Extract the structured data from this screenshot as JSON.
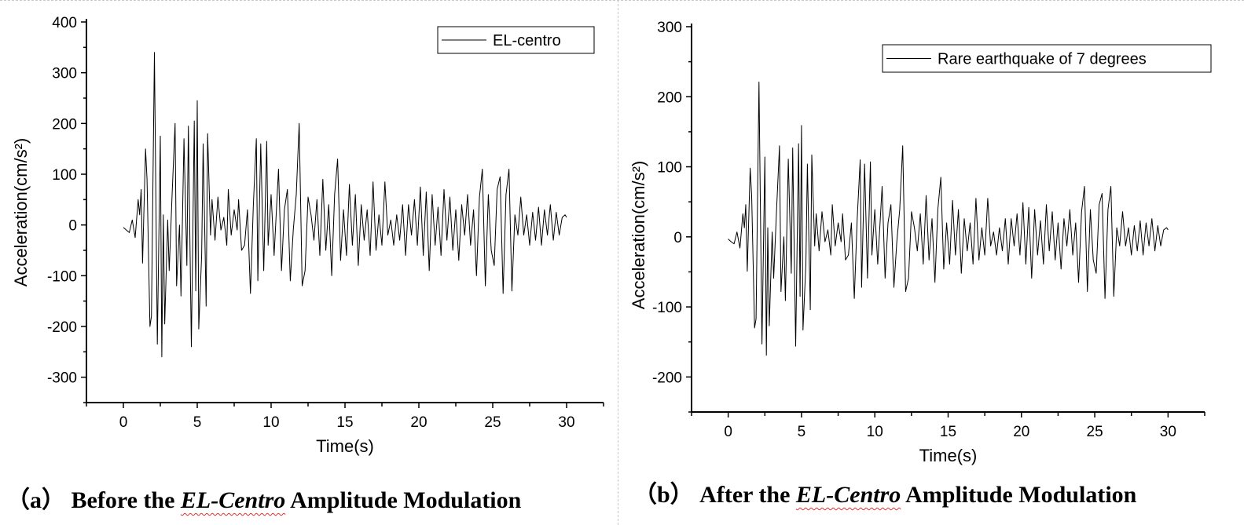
{
  "chart_data": [
    {
      "type": "line",
      "xlabel": "Time(s)",
      "ylabel": "Acceleration(cm/s²)",
      "xlim": [
        -2.5,
        32.5
      ],
      "ylim": [
        -350,
        400
      ],
      "xticks": [
        0,
        5,
        10,
        15,
        20,
        25,
        30
      ],
      "yticks": [
        -300,
        -200,
        -100,
        0,
        100,
        200,
        300,
        400
      ],
      "grid": false,
      "legend_placement": "top-right",
      "line_color": "#000000",
      "series": [
        {
          "name": "EL-centro",
          "x": [
            0,
            0.2,
            0.4,
            0.6,
            0.8,
            1.0,
            1.1,
            1.2,
            1.3,
            1.5,
            1.6,
            1.8,
            1.9,
            2.1,
            2.3,
            2.5,
            2.6,
            2.7,
            2.8,
            3.0,
            3.1,
            3.3,
            3.5,
            3.6,
            3.8,
            3.9,
            4.1,
            4.3,
            4.4,
            4.6,
            4.8,
            4.9,
            5.0,
            5.1,
            5.3,
            5.4,
            5.6,
            5.7,
            5.9,
            6.0,
            6.2,
            6.4,
            6.6,
            6.8,
            7.0,
            7.1,
            7.3,
            7.5,
            7.7,
            7.8,
            8.0,
            8.2,
            8.4,
            8.6,
            8.8,
            9.0,
            9.1,
            9.3,
            9.5,
            9.7,
            9.8,
            10.0,
            10.2,
            10.5,
            10.7,
            10.9,
            11.1,
            11.3,
            11.5,
            11.7,
            11.9,
            12.1,
            12.3,
            12.5,
            12.7,
            12.9,
            13.1,
            13.3,
            13.5,
            13.7,
            13.9,
            14.1,
            14.3,
            14.5,
            14.7,
            14.9,
            15.1,
            15.3,
            15.5,
            15.7,
            15.9,
            16.1,
            16.3,
            16.5,
            16.7,
            16.9,
            17.1,
            17.3,
            17.5,
            17.7,
            17.9,
            18.1,
            18.3,
            18.5,
            18.7,
            18.9,
            19.1,
            19.3,
            19.5,
            19.7,
            19.9,
            20.1,
            20.3,
            20.5,
            20.7,
            20.9,
            21.1,
            21.3,
            21.5,
            21.7,
            21.9,
            22.1,
            22.3,
            22.5,
            22.7,
            22.9,
            23.1,
            23.3,
            23.5,
            23.7,
            23.9,
            24.1,
            24.3,
            24.5,
            24.7,
            24.9,
            25.1,
            25.3,
            25.5,
            25.7,
            25.9,
            26.1,
            26.3,
            26.5,
            26.7,
            26.9,
            27.1,
            27.3,
            27.5,
            27.7,
            27.9,
            28.1,
            28.3,
            28.5,
            28.7,
            28.9,
            29.1,
            29.3,
            29.5,
            29.7,
            29.9,
            30.0
          ],
          "y": [
            -5,
            -10,
            -15,
            10,
            -25,
            50,
            20,
            70,
            -75,
            150,
            90,
            -200,
            -180,
            340,
            -235,
            175,
            -260,
            20,
            -195,
            10,
            -90,
            60,
            200,
            -120,
            0,
            -140,
            170,
            -80,
            195,
            -240,
            205,
            -130,
            245,
            -205,
            -60,
            160,
            -160,
            180,
            -20,
            50,
            -30,
            55,
            -10,
            15,
            -40,
            70,
            -20,
            30,
            -10,
            50,
            -50,
            -40,
            30,
            -135,
            40,
            170,
            -110,
            160,
            -90,
            165,
            -40,
            60,
            -60,
            110,
            -90,
            30,
            70,
            -110,
            -10,
            60,
            200,
            -120,
            -90,
            55,
            20,
            -30,
            50,
            -60,
            90,
            -50,
            40,
            -100,
            60,
            130,
            -70,
            30,
            -60,
            80,
            -40,
            60,
            -80,
            40,
            -30,
            30,
            -60,
            85,
            -50,
            20,
            -40,
            85,
            -20,
            10,
            -40,
            20,
            -30,
            40,
            -60,
            40,
            -20,
            50,
            -40,
            75,
            -60,
            65,
            -90,
            60,
            -40,
            35,
            -60,
            70,
            -30,
            55,
            -50,
            30,
            -70,
            40,
            -20,
            60,
            -40,
            30,
            -100,
            55,
            110,
            -120,
            60,
            -50,
            -80,
            70,
            95,
            -135,
            60,
            110,
            -130,
            20,
            -20,
            55,
            -20,
            20,
            -40,
            25,
            -30,
            35,
            -40,
            30,
            -20,
            40,
            -30,
            25,
            -20,
            15,
            20,
            15
          ]
        }
      ],
      "caption": {
        "prefix": "（a）  Before the ",
        "italic": "EL-Centro",
        "suffix": "  Amplitude Modulation"
      }
    },
    {
      "type": "line",
      "xlabel": "Time(s)",
      "ylabel": "Acceleration(cm/s²)",
      "xlim": [
        -2.5,
        32.5
      ],
      "ylim": [
        -250,
        300
      ],
      "xticks": [
        0,
        5,
        10,
        15,
        20,
        25,
        30
      ],
      "yticks": [
        -200,
        -100,
        0,
        100,
        200,
        300
      ],
      "grid": false,
      "legend_placement": "top-right",
      "line_color": "#000000",
      "series": [
        {
          "name": "Rare earthquake of 7 degrees",
          "x": [
            0,
            0.2,
            0.4,
            0.6,
            0.8,
            1.0,
            1.1,
            1.2,
            1.3,
            1.5,
            1.6,
            1.8,
            1.9,
            2.1,
            2.3,
            2.5,
            2.6,
            2.7,
            2.8,
            3.0,
            3.1,
            3.3,
            3.5,
            3.6,
            3.8,
            3.9,
            4.1,
            4.3,
            4.4,
            4.6,
            4.8,
            4.9,
            5.0,
            5.1,
            5.3,
            5.4,
            5.6,
            5.7,
            5.9,
            6.0,
            6.2,
            6.4,
            6.6,
            6.8,
            7.0,
            7.1,
            7.3,
            7.5,
            7.7,
            7.8,
            8.0,
            8.2,
            8.4,
            8.6,
            8.8,
            9.0,
            9.1,
            9.3,
            9.5,
            9.7,
            9.8,
            10.0,
            10.2,
            10.5,
            10.7,
            10.9,
            11.1,
            11.3,
            11.5,
            11.7,
            11.9,
            12.1,
            12.3,
            12.5,
            12.7,
            12.9,
            13.1,
            13.3,
            13.5,
            13.7,
            13.9,
            14.1,
            14.3,
            14.5,
            14.7,
            14.9,
            15.1,
            15.3,
            15.5,
            15.7,
            15.9,
            16.1,
            16.3,
            16.5,
            16.7,
            16.9,
            17.1,
            17.3,
            17.5,
            17.7,
            17.9,
            18.1,
            18.3,
            18.5,
            18.7,
            18.9,
            19.1,
            19.3,
            19.5,
            19.7,
            19.9,
            20.1,
            20.3,
            20.5,
            20.7,
            20.9,
            21.1,
            21.3,
            21.5,
            21.7,
            21.9,
            22.1,
            22.3,
            22.5,
            22.7,
            22.9,
            23.1,
            23.3,
            23.5,
            23.7,
            23.9,
            24.1,
            24.3,
            24.5,
            24.7,
            24.9,
            25.1,
            25.3,
            25.5,
            25.7,
            25.9,
            26.1,
            26.3,
            26.5,
            26.7,
            26.9,
            27.1,
            27.3,
            27.5,
            27.7,
            27.9,
            28.1,
            28.3,
            28.5,
            28.7,
            28.9,
            29.1,
            29.3,
            29.5,
            29.7,
            29.9,
            30.0
          ],
          "y": [
            -3,
            -7,
            -10,
            7,
            -16,
            33,
            13,
            46,
            -49,
            98,
            59,
            -130,
            -117,
            221,
            -153,
            114,
            -169,
            13,
            -127,
            7,
            -59,
            39,
            130,
            -78,
            0,
            -91,
            111,
            -52,
            127,
            -156,
            133,
            -85,
            159,
            -133,
            -39,
            104,
            -104,
            117,
            -13,
            33,
            -20,
            36,
            -7,
            10,
            -26,
            46,
            -13,
            20,
            -7,
            33,
            -33,
            -26,
            20,
            -88,
            26,
            110,
            -72,
            104,
            -59,
            107,
            -26,
            39,
            -39,
            72,
            -59,
            20,
            46,
            -72,
            -7,
            39,
            130,
            -78,
            -59,
            36,
            13,
            -20,
            33,
            -39,
            59,
            -33,
            26,
            -65,
            39,
            85,
            -46,
            20,
            -39,
            52,
            -26,
            39,
            -52,
            26,
            -20,
            20,
            -39,
            55,
            -33,
            13,
            -26,
            55,
            -13,
            7,
            -26,
            13,
            -20,
            26,
            -39,
            26,
            -13,
            33,
            -26,
            49,
            -39,
            42,
            -59,
            39,
            -26,
            23,
            -39,
            46,
            -20,
            36,
            -33,
            20,
            -46,
            26,
            -13,
            39,
            -26,
            20,
            -65,
            36,
            72,
            -78,
            39,
            -33,
            -52,
            46,
            62,
            -88,
            39,
            72,
            -85,
            13,
            -13,
            36,
            -13,
            13,
            -26,
            16,
            -20,
            23,
            -26,
            20,
            -13,
            26,
            -20,
            16,
            -13,
            10,
            13,
            10
          ]
        }
      ],
      "caption": {
        "prefix": "（b）   After the ",
        "italic": "EL-Centro",
        "suffix": "  Amplitude Modulation"
      }
    }
  ]
}
